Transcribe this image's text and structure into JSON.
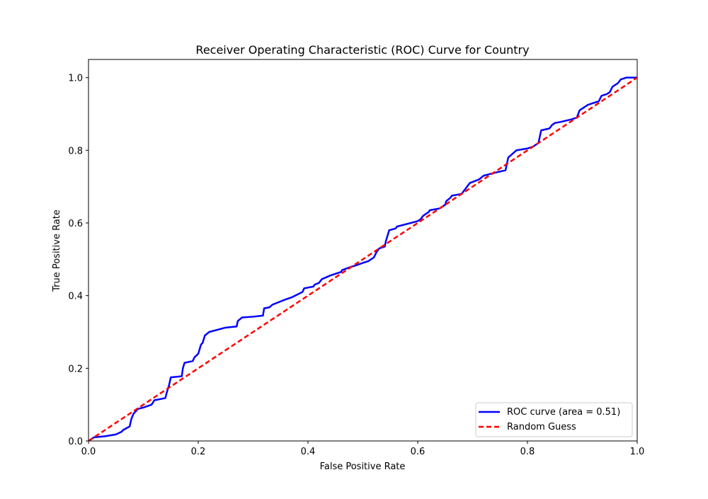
{
  "chart_data": {
    "type": "line",
    "title": "Receiver Operating Characteristic (ROC) Curve for Country",
    "xlabel": "False Positive Rate",
    "ylabel": "True Positive Rate",
    "xlim": [
      0.0,
      1.0
    ],
    "ylim": [
      0.0,
      1.05
    ],
    "xticks": [
      0.0,
      0.2,
      0.4,
      0.6,
      0.8,
      1.0
    ],
    "yticks": [
      0.0,
      0.2,
      0.4,
      0.6,
      0.8,
      1.0
    ],
    "xtick_labels": [
      "0.0",
      "0.2",
      "0.4",
      "0.6",
      "0.8",
      "1.0"
    ],
    "ytick_labels": [
      "0.0",
      "0.2",
      "0.4",
      "0.6",
      "0.8",
      "1.0"
    ],
    "grid": false,
    "legend_position": "lower-right",
    "series": [
      {
        "name": "ROC curve (area = 0.51)",
        "color": "#0000ff",
        "style": "solid",
        "x": [
          0.0,
          0.01,
          0.03,
          0.05,
          0.06,
          0.063,
          0.075,
          0.078,
          0.082,
          0.09,
          0.1,
          0.115,
          0.12,
          0.14,
          0.143,
          0.147,
          0.15,
          0.17,
          0.172,
          0.175,
          0.19,
          0.193,
          0.2,
          0.205,
          0.208,
          0.212,
          0.22,
          0.25,
          0.27,
          0.272,
          0.28,
          0.3,
          0.318,
          0.32,
          0.33,
          0.335,
          0.36,
          0.37,
          0.39,
          0.393,
          0.41,
          0.412,
          0.42,
          0.425,
          0.44,
          0.45,
          0.46,
          0.462,
          0.48,
          0.485,
          0.5,
          0.51,
          0.52,
          0.525,
          0.53,
          0.54,
          0.542,
          0.548,
          0.56,
          0.562,
          0.6,
          0.605,
          0.61,
          0.62,
          0.622,
          0.64,
          0.65,
          0.652,
          0.66,
          0.662,
          0.68,
          0.69,
          0.695,
          0.712,
          0.72,
          0.74,
          0.76,
          0.765,
          0.78,
          0.8,
          0.81,
          0.82,
          0.825,
          0.84,
          0.845,
          0.85,
          0.86,
          0.88,
          0.89,
          0.895,
          0.9,
          0.91,
          0.92,
          0.93,
          0.935,
          0.945,
          0.95,
          0.955,
          0.96,
          0.965,
          0.97,
          0.98,
          1.0
        ],
        "y": [
          0.0,
          0.01,
          0.013,
          0.018,
          0.025,
          0.03,
          0.04,
          0.06,
          0.075,
          0.088,
          0.092,
          0.1,
          0.112,
          0.118,
          0.135,
          0.155,
          0.175,
          0.178,
          0.2,
          0.215,
          0.22,
          0.23,
          0.24,
          0.265,
          0.27,
          0.29,
          0.3,
          0.312,
          0.315,
          0.33,
          0.34,
          0.342,
          0.345,
          0.365,
          0.368,
          0.375,
          0.39,
          0.395,
          0.41,
          0.42,
          0.425,
          0.43,
          0.435,
          0.445,
          0.455,
          0.46,
          0.465,
          0.47,
          0.48,
          0.482,
          0.49,
          0.495,
          0.505,
          0.52,
          0.53,
          0.535,
          0.55,
          0.58,
          0.585,
          0.59,
          0.605,
          0.61,
          0.62,
          0.63,
          0.635,
          0.64,
          0.65,
          0.66,
          0.67,
          0.675,
          0.68,
          0.7,
          0.71,
          0.72,
          0.73,
          0.738,
          0.745,
          0.78,
          0.8,
          0.805,
          0.81,
          0.82,
          0.855,
          0.86,
          0.87,
          0.875,
          0.878,
          0.885,
          0.89,
          0.91,
          0.915,
          0.925,
          0.93,
          0.935,
          0.95,
          0.955,
          0.96,
          0.975,
          0.98,
          0.985,
          0.995,
          1.0,
          1.0
        ]
      },
      {
        "name": "Random Guess",
        "color": "#ff0000",
        "style": "dashed",
        "x": [
          0.0,
          1.0
        ],
        "y": [
          0.0,
          1.0
        ]
      }
    ]
  }
}
